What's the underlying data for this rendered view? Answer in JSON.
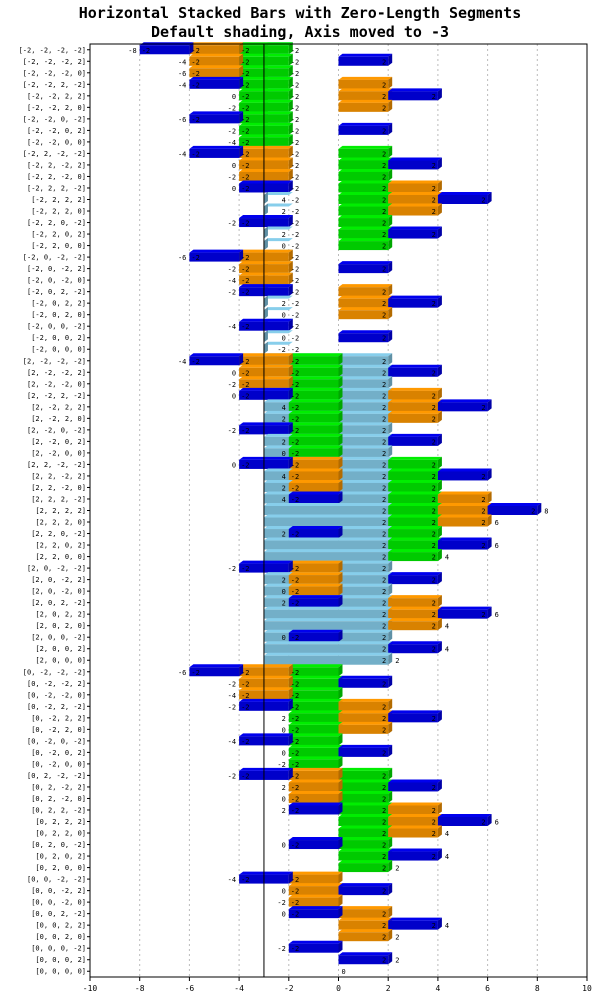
{
  "chart_data": {
    "type": "bar",
    "orientation": "horizontal",
    "stacked": true,
    "title": "Horizontal Stacked Bars with Zero-Length Segments",
    "subtitle": "Default shading, Axis moved to -3",
    "xlim": [
      -10,
      10
    ],
    "x_ticks": [
      -10,
      -8,
      -6,
      -4,
      -2,
      0,
      2,
      4,
      6,
      8,
      10
    ],
    "axis_crossing": -3,
    "grid": true,
    "series_colors": [
      "#87ceeb",
      "#00ee00",
      "#ff9900",
      "#0000ee"
    ],
    "categories": [
      "[-2, -2, -2, -2]",
      "[-2, -2, -2, 2]",
      "[-2, -2, -2, 0]",
      "[-2, -2, 2, -2]",
      "[-2, -2, 2, 2]",
      "[-2, -2, 2, 0]",
      "[-2, -2, 0, -2]",
      "[-2, -2, 0, 2]",
      "[-2, -2, 0, 0]",
      "[-2, 2, -2, -2]",
      "[-2, 2, -2, 2]",
      "[-2, 2, -2, 0]",
      "[-2, 2, 2, -2]",
      "[-2, 2, 2, 2]",
      "[-2, 2, 2, 0]",
      "[-2, 2, 0, -2]",
      "[-2, 2, 0, 2]",
      "[-2, 2, 0, 0]",
      "[-2, 0, -2, -2]",
      "[-2, 0, -2, 2]",
      "[-2, 0, -2, 0]",
      "[-2, 0, 2, -2]",
      "[-2, 0, 2, 2]",
      "[-2, 0, 2, 0]",
      "[-2, 0, 0, -2]",
      "[-2, 0, 0, 2]",
      "[-2, 0, 0, 0]",
      "[2, -2, -2, -2]",
      "[2, -2, -2, 2]",
      "[2, -2, -2, 0]",
      "[2, -2, 2, -2]",
      "[2, -2, 2, 2]",
      "[2, -2, 2, 0]",
      "[2, -2, 0, -2]",
      "[2, -2, 0, 2]",
      "[2, -2, 0, 0]",
      "[2, 2, -2, -2]",
      "[2, 2, -2, 2]",
      "[2, 2, -2, 0]",
      "[2, 2, 2, -2]",
      "[2, 2, 2, 2]",
      "[2, 2, 2, 0]",
      "[2, 2, 0, -2]",
      "[2, 2, 0, 2]",
      "[2, 2, 0, 0]",
      "[2, 0, -2, -2]",
      "[2, 0, -2, 2]",
      "[2, 0, -2, 0]",
      "[2, 0, 2, -2]",
      "[2, 0, 2, 2]",
      "[2, 0, 2, 0]",
      "[2, 0, 0, -2]",
      "[2, 0, 0, 2]",
      "[2, 0, 0, 0]",
      "[0, -2, -2, -2]",
      "[0, -2, -2, 2]",
      "[0, -2, -2, 0]",
      "[0, -2, 2, -2]",
      "[0, -2, 2, 2]",
      "[0, -2, 2, 0]",
      "[0, -2, 0, -2]",
      "[0, -2, 0, 2]",
      "[0, -2, 0, 0]",
      "[0, 2, -2, -2]",
      "[0, 2, -2, 2]",
      "[0, 2, -2, 0]",
      "[0, 2, 2, -2]",
      "[0, 2, 2, 2]",
      "[0, 2, 2, 0]",
      "[0, 2, 0, -2]",
      "[0, 2, 0, 2]",
      "[0, 2, 0, 0]",
      "[0, 0, -2, -2]",
      "[0, 0, -2, 2]",
      "[0, 0, -2, 0]",
      "[0, 0, 2, -2]",
      "[0, 0, 2, 2]",
      "[0, 0, 2, 0]",
      "[0, 0, 0, -2]",
      "[0, 0, 0, 2]",
      "[0, 0, 0, 0]"
    ],
    "series": [
      {
        "values": [
          -2,
          -2,
          -2,
          -2,
          -2,
          -2,
          -2,
          -2,
          -2,
          -2,
          -2,
          -2,
          -2,
          -2,
          -2,
          -2,
          -2,
          -2,
          -2,
          -2,
          -2,
          -2,
          -2,
          -2,
          -2,
          -2,
          -2,
          2,
          2,
          2,
          2,
          2,
          2,
          2,
          2,
          2,
          2,
          2,
          2,
          2,
          2,
          2,
          2,
          2,
          2,
          2,
          2,
          2,
          2,
          2,
          2,
          2,
          2,
          2,
          0,
          0,
          0,
          0,
          0,
          0,
          0,
          0,
          0,
          0,
          0,
          0,
          0,
          0,
          0,
          0,
          0,
          0,
          0,
          0,
          0,
          0,
          0,
          0,
          0,
          0,
          0
        ]
      },
      {
        "values": [
          -2,
          -2,
          -2,
          -2,
          -2,
          -2,
          -2,
          -2,
          -2,
          2,
          2,
          2,
          2,
          2,
          2,
          2,
          2,
          2,
          0,
          0,
          0,
          0,
          0,
          0,
          0,
          0,
          0,
          -2,
          -2,
          -2,
          -2,
          -2,
          -2,
          -2,
          -2,
          -2,
          2,
          2,
          2,
          2,
          2,
          2,
          2,
          2,
          2,
          0,
          0,
          0,
          0,
          0,
          0,
          0,
          0,
          0,
          -2,
          -2,
          -2,
          -2,
          -2,
          -2,
          -2,
          -2,
          -2,
          2,
          2,
          2,
          2,
          2,
          2,
          2,
          2,
          2,
          0,
          0,
          0,
          0,
          0,
          0,
          0,
          0,
          0
        ]
      },
      {
        "values": [
          -2,
          -2,
          -2,
          2,
          2,
          2,
          0,
          0,
          0,
          -2,
          -2,
          -2,
          2,
          2,
          2,
          0,
          0,
          0,
          -2,
          -2,
          -2,
          2,
          2,
          2,
          0,
          0,
          0,
          -2,
          -2,
          -2,
          2,
          2,
          2,
          0,
          0,
          0,
          -2,
          -2,
          -2,
          2,
          2,
          2,
          0,
          0,
          0,
          -2,
          -2,
          -2,
          2,
          2,
          2,
          0,
          0,
          0,
          -2,
          -2,
          -2,
          2,
          2,
          2,
          0,
          0,
          0,
          -2,
          -2,
          -2,
          2,
          2,
          2,
          0,
          0,
          0,
          -2,
          -2,
          -2,
          2,
          2,
          2,
          0,
          0,
          0
        ]
      },
      {
        "values": [
          -2,
          2,
          0,
          -2,
          2,
          0,
          -2,
          2,
          0,
          -2,
          2,
          0,
          -2,
          2,
          0,
          -2,
          2,
          0,
          -2,
          2,
          0,
          -2,
          2,
          0,
          -2,
          2,
          0,
          -2,
          2,
          0,
          -2,
          2,
          0,
          -2,
          2,
          0,
          -2,
          2,
          0,
          -2,
          2,
          0,
          -2,
          2,
          0,
          -2,
          2,
          0,
          -2,
          2,
          0,
          -2,
          2,
          0,
          -2,
          2,
          0,
          -2,
          2,
          0,
          -2,
          2,
          0,
          -2,
          2,
          0,
          -2,
          2,
          0,
          -2,
          2,
          0,
          -2,
          2,
          0,
          -2,
          2,
          0,
          -2,
          2,
          0
        ]
      }
    ]
  }
}
